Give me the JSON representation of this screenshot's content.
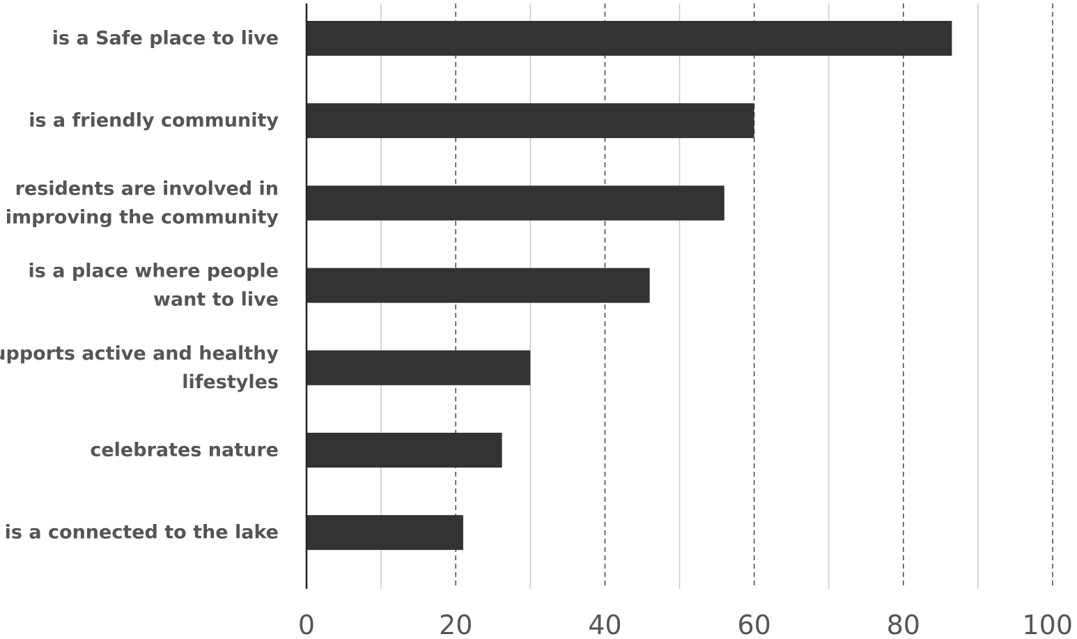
{
  "chart_data": {
    "type": "bar",
    "orientation": "horizontal",
    "categories": [
      [
        "is a Safe place to live"
      ],
      [
        "is a friendly community"
      ],
      [
        "residents are involved in",
        "improving the community"
      ],
      [
        "is a place where people",
        "want to live"
      ],
      [
        "supports active and healthy",
        "lifestyles"
      ],
      [
        "celebrates nature"
      ],
      [
        "is a connected to the lake"
      ]
    ],
    "values": [
      86.5,
      60,
      56,
      46,
      30,
      26.2,
      21
    ],
    "xlim": [
      0,
      100
    ],
    "major_ticks": [
      0,
      20,
      40,
      60,
      80,
      100
    ],
    "tick_labels": [
      "0",
      "20",
      "40",
      "60",
      "80",
      "100"
    ],
    "minor_gridlines": [
      10,
      30,
      50,
      70,
      90
    ],
    "major_gridlines": [
      20,
      40,
      60,
      80,
      100
    ],
    "grid": true,
    "legend": "none",
    "title": "",
    "xlabel": "",
    "ylabel": "",
    "colors": {
      "bar": "#333333",
      "label": "#555555",
      "grid_minor": "#c8c8c8",
      "grid_major": "#444444"
    }
  }
}
